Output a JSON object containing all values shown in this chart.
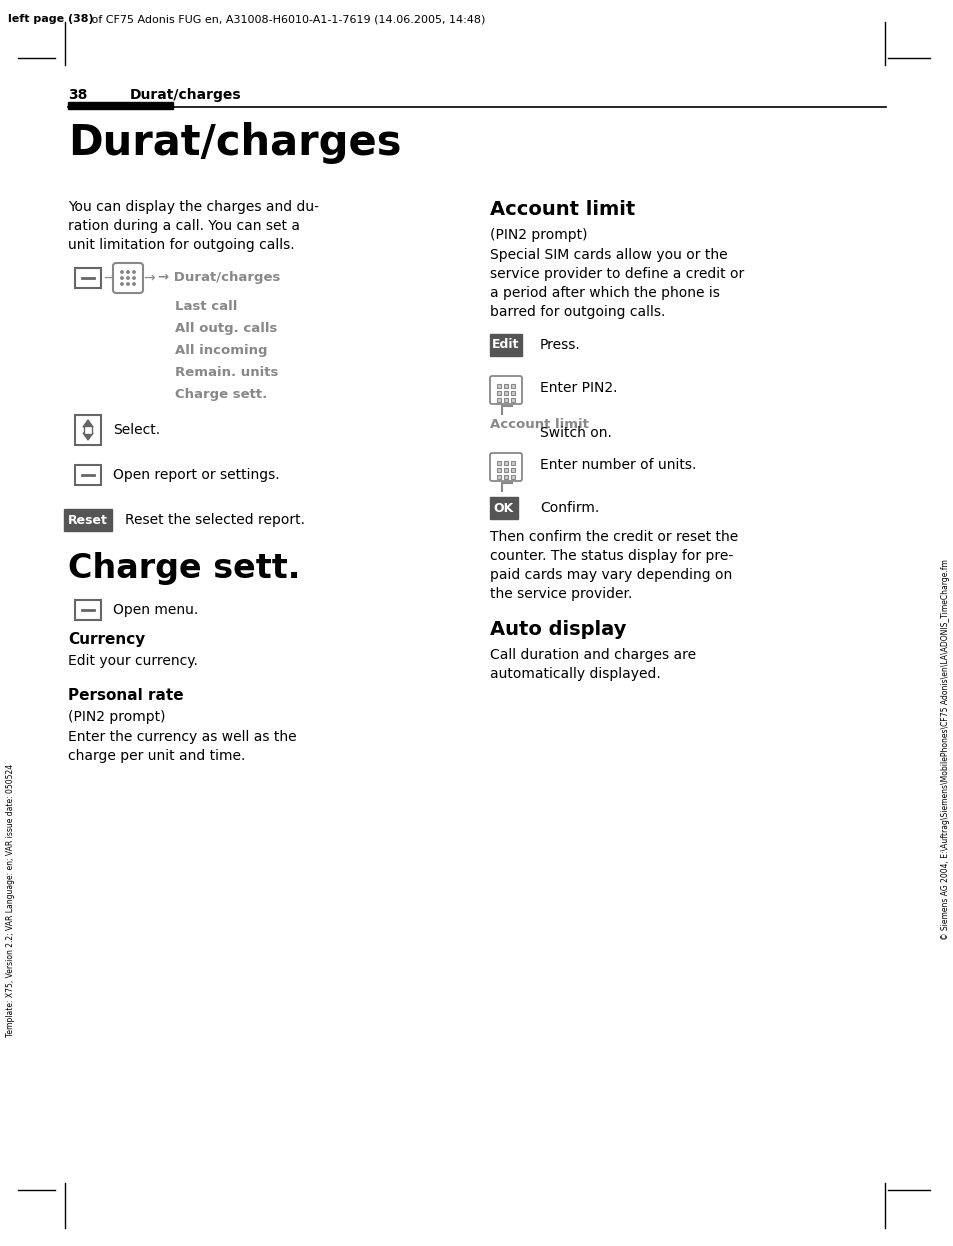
{
  "page_header_text": "left page (38) of CF75 Adonis FUG en, A31008-H6010-A1-1-7619 (14.06.2005, 14:48)",
  "side_text_left": "Template: X75, Version 2.2; VAR Language: en; VAR issue date: 050524",
  "side_text_right": "© Siemens AG 2004, E:\\Auftrag\\Siemens\\MobilePhones\\CF75 Adonis\\en\\LA\\ADONIS_TimeCharge.fm",
  "page_number": "38",
  "section_header": "Durat/charges",
  "main_title": "Durat/charges",
  "intro_text": "You can display the charges and du-\nration during a call. You can set a\nunit limitation for outgoing calls.",
  "menu_nav_label": "→ Durat/charges",
  "menu_items": [
    "Last call",
    "All outg. calls",
    "All incoming",
    "Remain. units",
    "Charge sett."
  ],
  "select_text": "Select.",
  "open_report_text": "Open report or settings.",
  "reset_text": "Reset the selected report.",
  "charge_sett_title": "Charge sett.",
  "open_menu_text": "Open menu.",
  "currency_title": "Currency",
  "currency_text": "Edit your currency.",
  "personal_rate_title": "Personal rate",
  "pin2_prompt": "(PIN2 prompt)",
  "personal_rate_text": "Enter the currency as well as the\ncharge per unit and time.",
  "account_limit_title": "Account limit",
  "account_limit_pin2": "(PIN2 prompt)",
  "account_limit_desc": "Special SIM cards allow you or the\nservice provider to define a credit or\na period after which the phone is\nbarred for outgoing calls.",
  "edit_press": "Press.",
  "enter_pin2": "Enter PIN2.",
  "account_limit_label": "Account limit",
  "switch_on": "Switch on.",
  "enter_units": "Enter number of units.",
  "confirm_text": "Confirm.",
  "then_confirm_text": "Then confirm the credit or reset the\ncounter. The status display for pre-\npaid cards may vary depending on\nthe service provider.",
  "auto_display_title": "Auto display",
  "auto_display_text": "Call duration and charges are\nautomatically displayed.",
  "bg_color": "#ffffff",
  "text_color": "#000000",
  "gray_menu": "#777777",
  "dark_gray": "#555555"
}
